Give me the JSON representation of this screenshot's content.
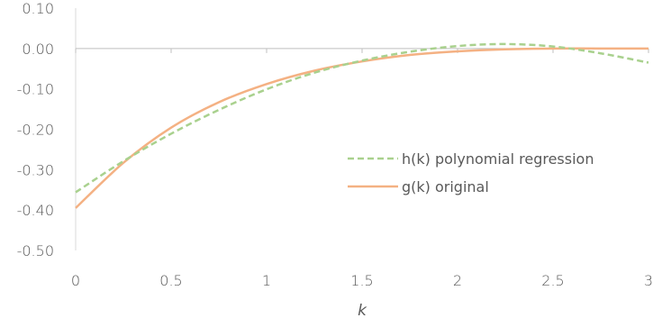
{
  "chart_data": {
    "type": "line",
    "xlabel": "k",
    "ylabel": "",
    "xlim": [
      0,
      3
    ],
    "ylim": [
      -0.5,
      0.1
    ],
    "x_ticks": [
      0,
      0.5,
      1,
      1.5,
      2,
      2.5,
      3
    ],
    "x_tick_labels": [
      "0",
      "0.5",
      "1",
      "1.5",
      "2",
      "2.5",
      "3"
    ],
    "y_ticks": [
      0.1,
      0.0,
      -0.1,
      -0.2,
      -0.3,
      -0.4,
      -0.5
    ],
    "y_tick_labels": [
      "0.10",
      "0.00",
      "-0.10",
      "-0.20",
      "-0.30",
      "-0.40",
      "-0.50"
    ],
    "grid": false,
    "legend_position": "right",
    "series": [
      {
        "name": "h(k) polynomial regression",
        "style": "dashed",
        "color": "#a9d18e",
        "x": [
          0,
          0.25,
          0.5,
          0.75,
          1.0,
          1.25,
          1.5,
          1.75,
          2.0,
          2.25,
          2.5,
          2.75,
          3.0
        ],
        "y": [
          -0.356,
          -0.279,
          -0.211,
          -0.152,
          -0.101,
          -0.06,
          -0.03,
          -0.008,
          0.006,
          0.011,
          0.005,
          -0.012,
          -0.035
        ]
      },
      {
        "name": "g(k) original",
        "style": "solid",
        "color": "#f4b183",
        "x": [
          0,
          0.25,
          0.5,
          0.75,
          1.0,
          1.25,
          1.5,
          1.75,
          2.0,
          2.25,
          2.5,
          2.75,
          3.0
        ],
        "y": [
          -0.395,
          -0.283,
          -0.196,
          -0.133,
          -0.088,
          -0.055,
          -0.032,
          -0.016,
          -0.007,
          -0.002,
          0.0,
          0.0,
          0.0
        ]
      }
    ]
  }
}
